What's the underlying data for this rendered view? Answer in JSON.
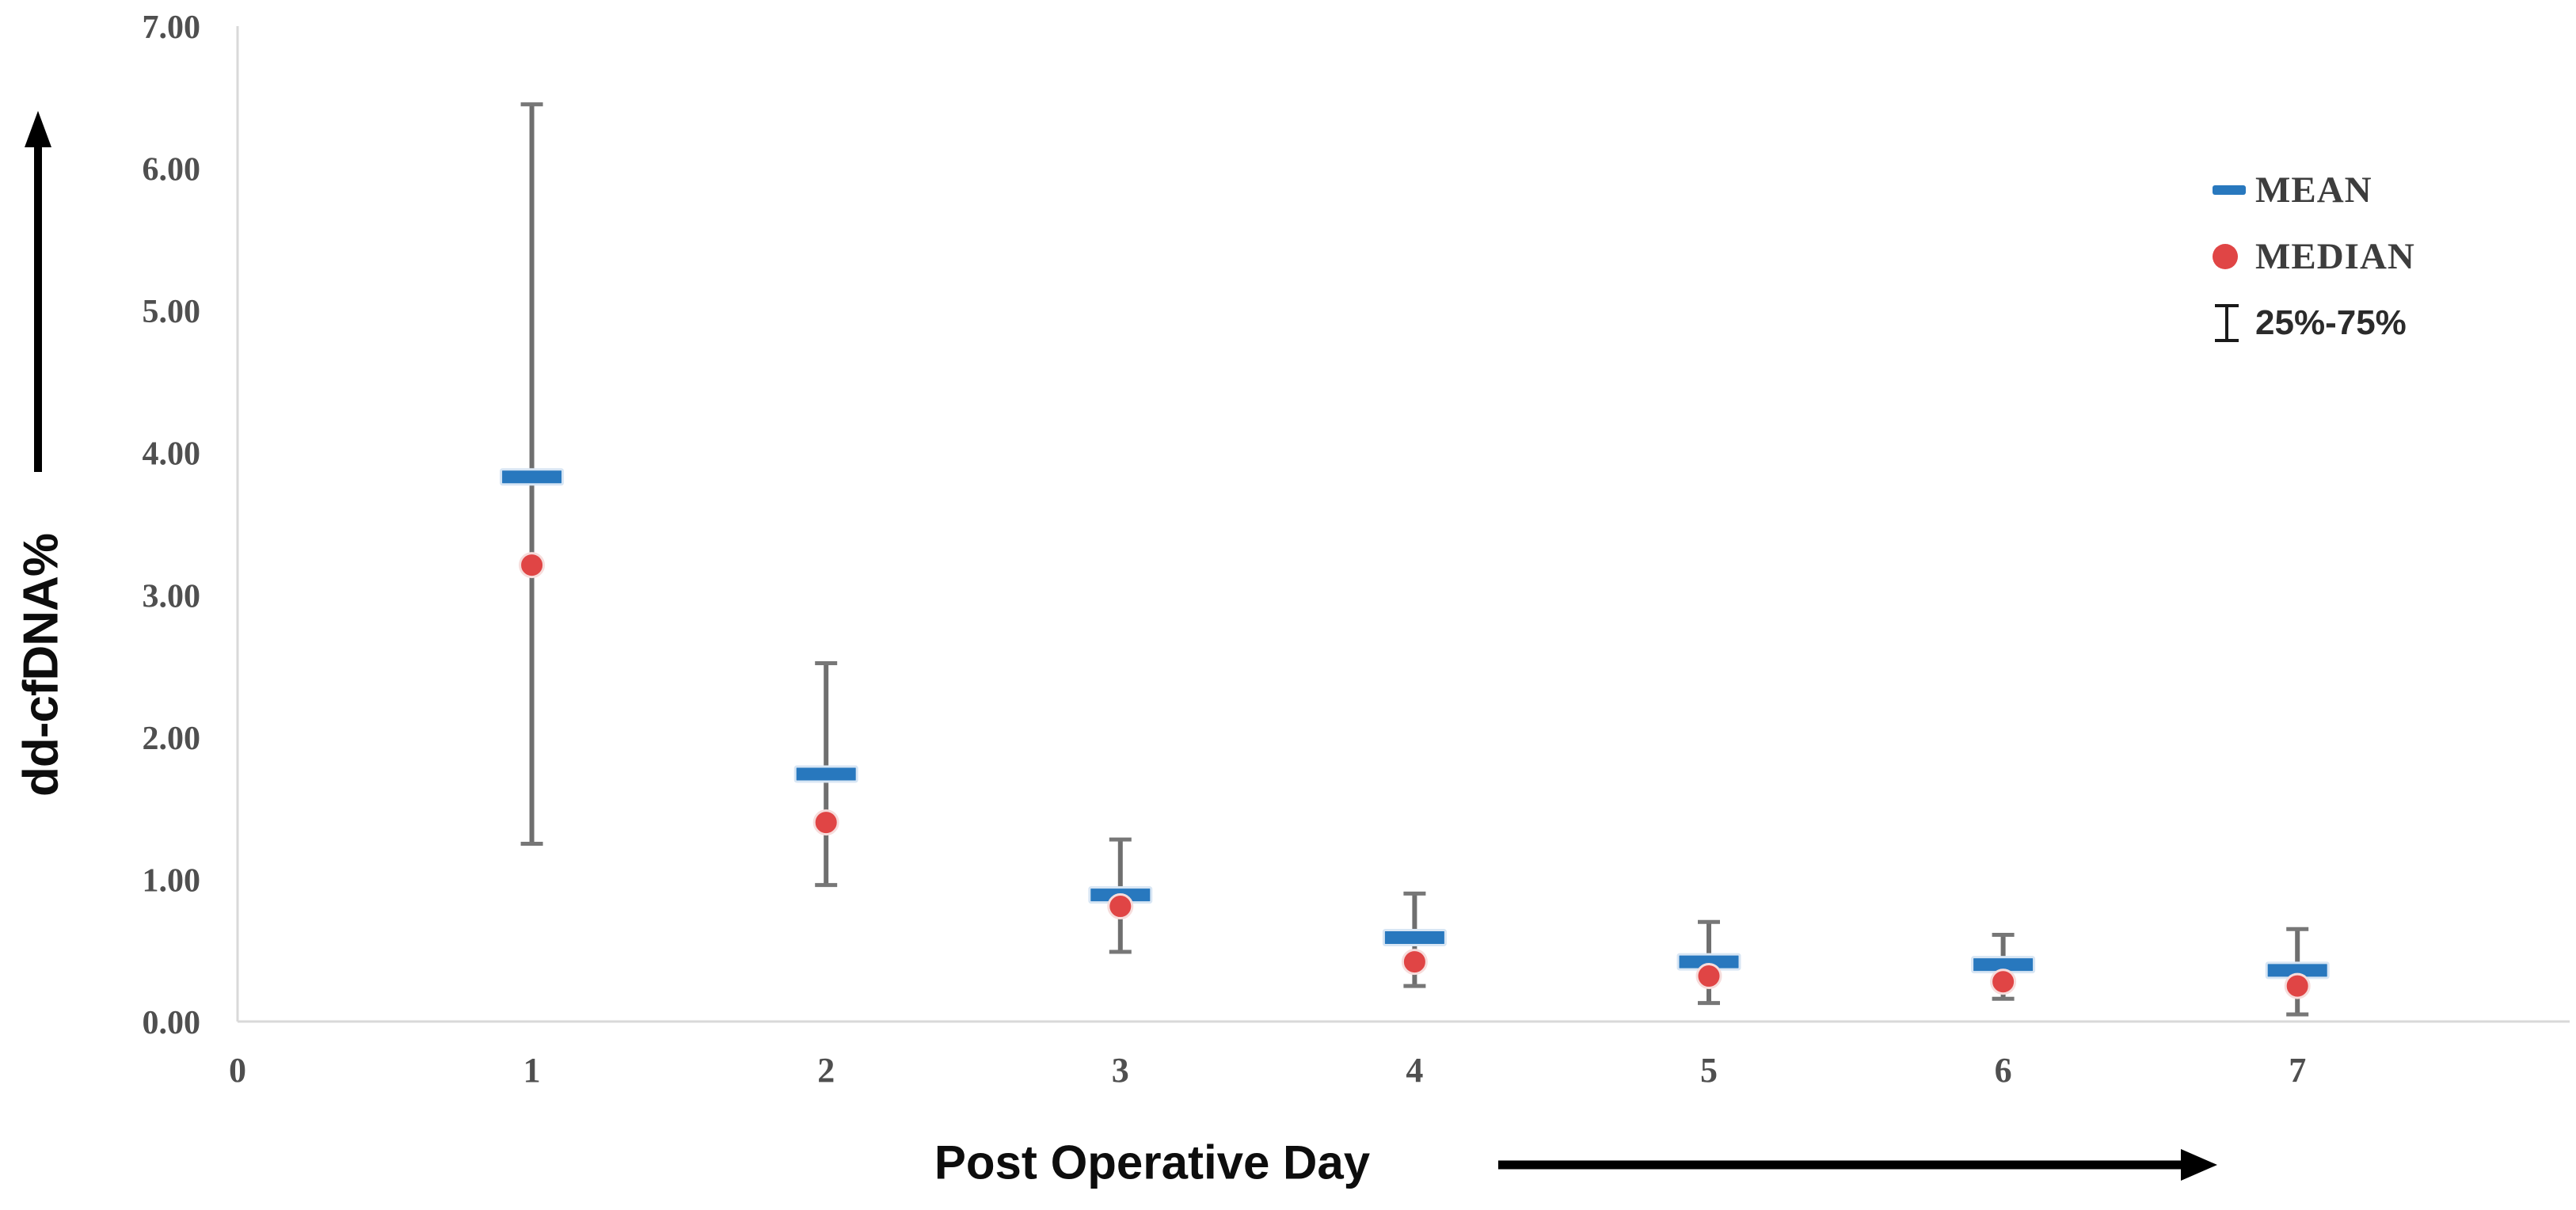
{
  "figure": {
    "background": "#ffffff",
    "axis_color": "#D9D9D9",
    "tick_text_color": "#4f4f4f"
  },
  "legend": {
    "items": [
      {
        "label": "MEAN",
        "marker": "horizontal-dash",
        "color": "#2878BE"
      },
      {
        "label": "MEDIAN",
        "marker": "circle",
        "color": "#E04545"
      },
      {
        "label": "25%-75%",
        "marker": "error-bar",
        "color": "#1A1A1A"
      }
    ]
  },
  "chart_data": {
    "type": "scatter",
    "title": "",
    "xlabel": "Post Operative Day",
    "ylabel": "dd-cfDNA%",
    "x": [
      1,
      2,
      3,
      4,
      5,
      6,
      7
    ],
    "x_tick_labels": [
      "0",
      "1",
      "2",
      "3",
      "4",
      "5",
      "6",
      "7"
    ],
    "y_tick_labels": [
      "0.00",
      "1.00",
      "2.00",
      "3.00",
      "4.00",
      "5.00",
      "6.00",
      "7.00"
    ],
    "xlim": [
      0,
      7.9
    ],
    "ylim": [
      0,
      7
    ],
    "grid": false,
    "legend_position": "upper-right",
    "series": [
      {
        "name": "MEAN",
        "marker": "horizontal-dash",
        "color": "#2878BE",
        "values": [
          3.83,
          1.74,
          0.89,
          0.59,
          0.42,
          0.4,
          0.36
        ]
      },
      {
        "name": "MEDIAN",
        "marker": "circle",
        "color": "#E04545",
        "values": [
          3.21,
          1.4,
          0.81,
          0.42,
          0.32,
          0.28,
          0.25
        ]
      },
      {
        "name": "25%-75%",
        "marker": "error-bar",
        "color": "#6F6F6F",
        "lower": [
          1.25,
          0.96,
          0.49,
          0.25,
          0.13,
          0.16,
          0.05
        ],
        "upper": [
          6.45,
          2.52,
          1.28,
          0.9,
          0.7,
          0.61,
          0.65
        ]
      }
    ]
  }
}
